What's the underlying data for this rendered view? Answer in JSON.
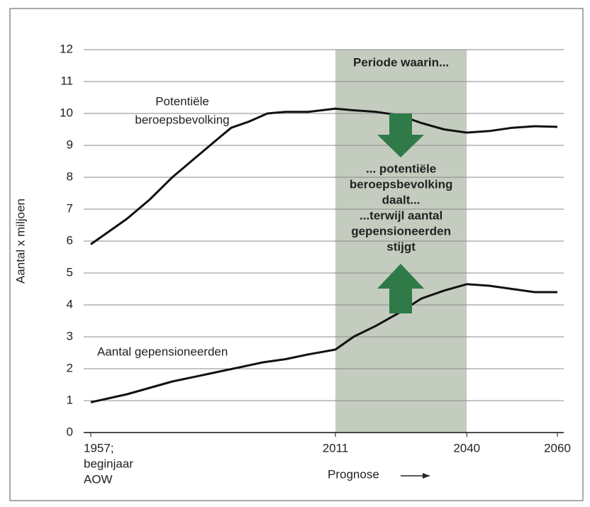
{
  "chart_data": {
    "type": "line",
    "y_label": "Aantal x miljoen",
    "x_label": "Prognose",
    "xlim": [
      1957,
      2060
    ],
    "xticks": [
      {
        "value": 1957,
        "label": [
          "1957;",
          "beginjaar",
          "AOW"
        ]
      },
      2011,
      2040,
      2060
    ],
    "ylim": [
      0,
      12
    ],
    "yticks": [
      0,
      1,
      2,
      3,
      4,
      5,
      6,
      7,
      8,
      9,
      10,
      11,
      12
    ],
    "grid": true,
    "highlight": {
      "from": 2011,
      "to": 2040,
      "color": "#c4ccbf"
    },
    "series": [
      {
        "name": [
          "Potentiële",
          "beroepsbevolking"
        ],
        "color": "#111111",
        "x": [
          1957,
          1960,
          1965,
          1970,
          1975,
          1980,
          1985,
          1988,
          1992,
          1996,
          2000,
          2005,
          2011,
          2015,
          2020,
          2025,
          2030,
          2035,
          2040,
          2045,
          2050,
          2055,
          2060
        ],
        "values": [
          5.9,
          6.2,
          6.7,
          7.3,
          8.0,
          8.6,
          9.2,
          9.55,
          9.75,
          10.0,
          10.05,
          10.05,
          10.15,
          10.1,
          10.05,
          9.95,
          9.7,
          9.5,
          9.4,
          9.45,
          9.55,
          9.6,
          9.58
        ]
      },
      {
        "name": [
          "Aantal gepensioneerden"
        ],
        "color": "#111111",
        "x": [
          1957,
          1965,
          1970,
          1975,
          1980,
          1985,
          1990,
          1995,
          2000,
          2005,
          2011,
          2015,
          2020,
          2025,
          2030,
          2035,
          2040,
          2045,
          2050,
          2055,
          2060
        ],
        "values": [
          0.95,
          1.2,
          1.4,
          1.6,
          1.75,
          1.9,
          2.05,
          2.2,
          2.3,
          2.45,
          2.6,
          3.0,
          3.35,
          3.75,
          4.2,
          4.45,
          4.65,
          4.6,
          4.5,
          4.4,
          4.4
        ]
      }
    ],
    "annotations": [
      [
        "Periode waarin..."
      ],
      [
        "... potentiële",
        "beroepsbevolking",
        "daalt...",
        "...terwijl aantal",
        "gepensioneerden",
        "stijgt"
      ]
    ],
    "arrow_color": "#2f7a47"
  }
}
